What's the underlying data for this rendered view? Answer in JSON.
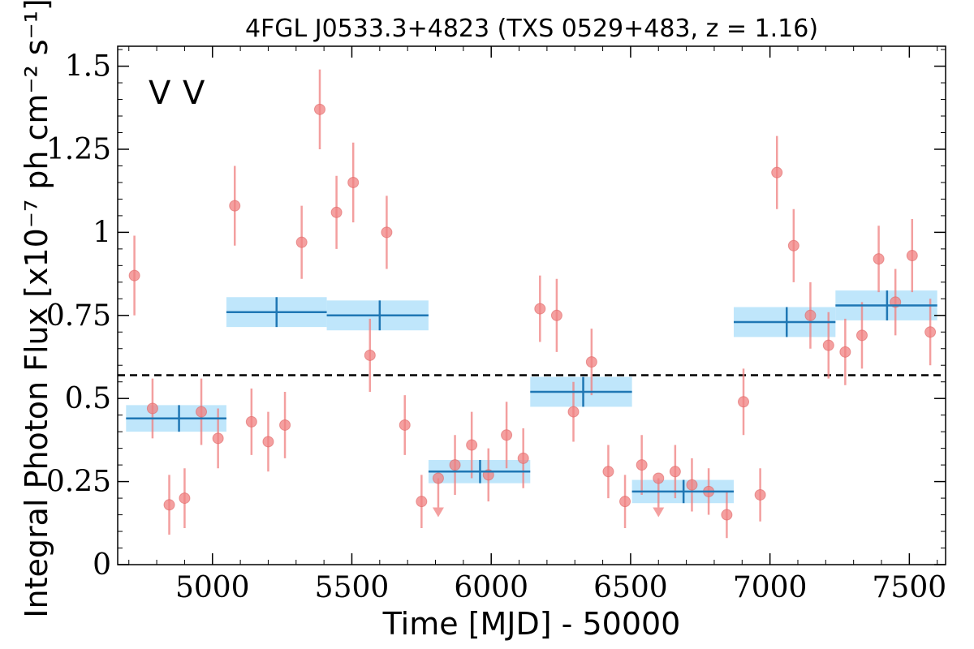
{
  "chart_data": {
    "type": "scatter",
    "title": "4FGL J0533.3+4823 (TXS 0529+483, z = 1.16)",
    "xlabel": "Time [MJD] - 50000",
    "ylabel": "Integral Photon Flux [x10⁻⁷ ph cm⁻² s⁻¹]",
    "xlim": [
      4660,
      7630
    ],
    "ylim": [
      0,
      1.56
    ],
    "xticks": [
      5000,
      5500,
      6000,
      6500,
      7000,
      7500
    ],
    "xtick_labels": [
      "5000",
      "5500",
      "6000",
      "6500",
      "7000",
      "7500"
    ],
    "yticks": [
      0,
      0.25,
      0.5,
      0.75,
      1,
      1.25,
      1.5
    ],
    "ytick_labels": [
      "0",
      "0.25",
      "0.5",
      "0.75",
      "1",
      "1.25",
      "1.5"
    ],
    "markers": [
      {
        "text": "V",
        "color": "#1f77b4"
      },
      {
        "text": "V",
        "color": "#d62728"
      }
    ],
    "mean_flux": 0.57,
    "grid": false,
    "series": [
      {
        "kind": "short-bins",
        "color": "#f08080",
        "points": [
          {
            "x": 4720,
            "y": 0.87,
            "yerr": 0.12
          },
          {
            "x": 4785,
            "y": 0.47,
            "yerr": 0.09
          },
          {
            "x": 4845,
            "y": 0.18,
            "yerr": 0.09
          },
          {
            "x": 4900,
            "y": 0.2,
            "yerr": 0.09
          },
          {
            "x": 4960,
            "y": 0.46,
            "yerr": 0.1
          },
          {
            "x": 5020,
            "y": 0.38,
            "yerr": 0.09
          },
          {
            "x": 5080,
            "y": 1.08,
            "yerr": 0.12
          },
          {
            "x": 5140,
            "y": 0.43,
            "yerr": 0.1
          },
          {
            "x": 5200,
            "y": 0.37,
            "yerr": 0.09
          },
          {
            "x": 5260,
            "y": 0.42,
            "yerr": 0.1
          },
          {
            "x": 5320,
            "y": 0.97,
            "yerr": 0.11
          },
          {
            "x": 5385,
            "y": 1.37,
            "yerr": 0.12
          },
          {
            "x": 5445,
            "y": 1.06,
            "yerr": 0.11
          },
          {
            "x": 5505,
            "y": 1.15,
            "yerr": 0.12
          },
          {
            "x": 5565,
            "y": 0.63,
            "yerr": 0.11
          },
          {
            "x": 5625,
            "y": 1.0,
            "yerr": 0.11
          },
          {
            "x": 5690,
            "y": 0.42,
            "yerr": 0.09
          },
          {
            "x": 5750,
            "y": 0.19,
            "yerr": 0.08
          },
          {
            "x": 5810,
            "y": 0.26,
            "yerr": 0.0,
            "upper_limit": true
          },
          {
            "x": 5870,
            "y": 0.3,
            "yerr": 0.09
          },
          {
            "x": 5930,
            "y": 0.36,
            "yerr": 0.1
          },
          {
            "x": 5990,
            "y": 0.27,
            "yerr": 0.08
          },
          {
            "x": 6055,
            "y": 0.39,
            "yerr": 0.1
          },
          {
            "x": 6115,
            "y": 0.32,
            "yerr": 0.09
          },
          {
            "x": 6175,
            "y": 0.77,
            "yerr": 0.1
          },
          {
            "x": 6235,
            "y": 0.75,
            "yerr": 0.11
          },
          {
            "x": 6295,
            "y": 0.46,
            "yerr": 0.09
          },
          {
            "x": 6360,
            "y": 0.61,
            "yerr": 0.1
          },
          {
            "x": 6420,
            "y": 0.28,
            "yerr": 0.08
          },
          {
            "x": 6480,
            "y": 0.19,
            "yerr": 0.08
          },
          {
            "x": 6540,
            "y": 0.3,
            "yerr": 0.09
          },
          {
            "x": 6600,
            "y": 0.26,
            "yerr": 0.0,
            "upper_limit": true
          },
          {
            "x": 6660,
            "y": 0.28,
            "yerr": 0.08
          },
          {
            "x": 6720,
            "y": 0.24,
            "yerr": 0.08
          },
          {
            "x": 6780,
            "y": 0.22,
            "yerr": 0.07
          },
          {
            "x": 6845,
            "y": 0.15,
            "yerr": 0.07
          },
          {
            "x": 6905,
            "y": 0.49,
            "yerr": 0.1
          },
          {
            "x": 6965,
            "y": 0.21,
            "yerr": 0.08
          },
          {
            "x": 7025,
            "y": 1.18,
            "yerr": 0.11
          },
          {
            "x": 7085,
            "y": 0.96,
            "yerr": 0.11
          },
          {
            "x": 7145,
            "y": 0.75,
            "yerr": 0.1
          },
          {
            "x": 7210,
            "y": 0.66,
            "yerr": 0.1
          },
          {
            "x": 7270,
            "y": 0.64,
            "yerr": 0.1
          },
          {
            "x": 7330,
            "y": 0.69,
            "yerr": 0.1
          },
          {
            "x": 7390,
            "y": 0.92,
            "yerr": 0.1
          },
          {
            "x": 7450,
            "y": 0.79,
            "yerr": 0.1
          },
          {
            "x": 7510,
            "y": 0.93,
            "yerr": 0.11
          },
          {
            "x": 7575,
            "y": 0.7,
            "yerr": 0.1
          }
        ]
      },
      {
        "kind": "long-bins",
        "color": "#1f77b4",
        "band_color": "#bfe6fb",
        "bins": [
          {
            "x0": 4690,
            "x1": 5050,
            "xc": 4880,
            "y": 0.44,
            "yerr": 0.04
          },
          {
            "x0": 5050,
            "x1": 5410,
            "xc": 5230,
            "y": 0.76,
            "yerr": 0.045
          },
          {
            "x0": 5410,
            "x1": 5775,
            "xc": 5600,
            "y": 0.75,
            "yerr": 0.045
          },
          {
            "x0": 5775,
            "x1": 6140,
            "xc": 5960,
            "y": 0.28,
            "yerr": 0.035
          },
          {
            "x0": 6140,
            "x1": 6505,
            "xc": 6330,
            "y": 0.52,
            "yerr": 0.045
          },
          {
            "x0": 6505,
            "x1": 6870,
            "xc": 6690,
            "y": 0.22,
            "yerr": 0.035
          },
          {
            "x0": 6870,
            "x1": 7235,
            "xc": 7060,
            "y": 0.73,
            "yerr": 0.045
          },
          {
            "x0": 7235,
            "x1": 7600,
            "xc": 7420,
            "y": 0.78,
            "yerr": 0.045
          }
        ]
      }
    ]
  }
}
